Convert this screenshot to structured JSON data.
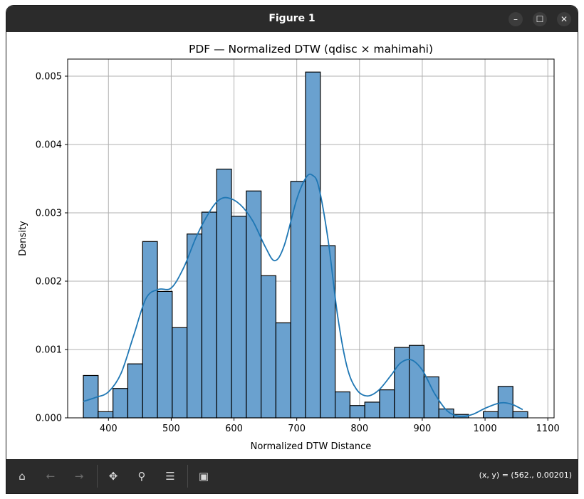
{
  "window": {
    "title": "Figure 1",
    "controls": {
      "minimize": "–",
      "maximize": "☐",
      "close": "✕"
    }
  },
  "toolbar": {
    "items": [
      {
        "name": "home-button",
        "icon": "home-icon",
        "glyph": "⌂",
        "enabled": true
      },
      {
        "name": "back-button",
        "icon": "arrow-left-icon",
        "glyph": "←",
        "enabled": false
      },
      {
        "name": "forward-button",
        "icon": "arrow-right-icon",
        "glyph": "→",
        "enabled": false
      },
      {
        "name": "pan-button",
        "icon": "move-icon",
        "glyph": "✥",
        "enabled": true
      },
      {
        "name": "zoom-button",
        "icon": "magnifier-icon",
        "glyph": "⚲",
        "enabled": true
      },
      {
        "name": "configure-subplots-button",
        "icon": "sliders-icon",
        "glyph": "☰",
        "enabled": true
      },
      {
        "name": "save-button",
        "icon": "floppy-icon",
        "glyph": "▣",
        "enabled": true
      }
    ],
    "coords": "(x, y) = (562., 0.00201)"
  },
  "chart_data": {
    "type": "histogram",
    "title": "PDF — Normalized DTW (qdisc × mahimahi)",
    "xlabel": "Normalized DTW Distance",
    "ylabel": "Density",
    "xlim": [
      335,
      1110
    ],
    "ylim": [
      0,
      0.00525
    ],
    "xticks": [
      400,
      500,
      600,
      700,
      800,
      900,
      1000,
      1100
    ],
    "yticks": [
      0.0,
      0.001,
      0.002,
      0.003,
      0.004,
      0.005
    ],
    "ytick_labels": [
      "0.000",
      "0.001",
      "0.002",
      "0.003",
      "0.004",
      "0.005"
    ],
    "grid": true,
    "bin_edges": [
      360,
      383.6,
      407.2,
      430.8,
      454.4,
      478.0,
      501.6,
      525.2,
      548.8,
      572.4,
      596.0,
      619.6,
      643.2,
      666.8,
      690.4,
      714.0,
      737.6,
      761.2,
      784.8,
      808.4,
      832.0,
      855.6,
      879.2,
      902.8,
      926.4,
      950.0,
      973.6,
      997.2,
      1020.8,
      1044.4,
      1068.0
    ],
    "densities": [
      0.00062,
      9e-05,
      0.00043,
      0.00079,
      0.00258,
      0.00185,
      0.00132,
      0.00269,
      0.00301,
      0.00364,
      0.00295,
      0.00332,
      0.00208,
      0.00139,
      0.00346,
      0.00506,
      0.00252,
      0.00038,
      0.00018,
      0.00023,
      0.00041,
      0.00103,
      0.00106,
      0.0006,
      0.00013,
      5e-05,
      0.0,
      9e-05,
      0.00046,
      9e-05
    ],
    "kde": {
      "x": [
        360,
        380,
        400,
        420,
        440,
        460,
        480,
        500,
        520,
        540,
        560,
        575,
        590,
        610,
        630,
        650,
        665,
        680,
        700,
        715,
        725,
        735,
        750,
        765,
        780,
        795,
        812,
        830,
        850,
        865,
        882,
        900,
        920,
        940,
        960,
        980,
        1000,
        1020,
        1032,
        1045,
        1060
      ],
      "y": [
        0.00024,
        0.0003,
        0.00038,
        0.00065,
        0.0012,
        0.00175,
        0.00188,
        0.0019,
        0.0022,
        0.00265,
        0.003,
        0.00318,
        0.00322,
        0.00312,
        0.00288,
        0.0025,
        0.0023,
        0.00252,
        0.0032,
        0.00352,
        0.00355,
        0.00338,
        0.0026,
        0.0015,
        0.00075,
        0.00042,
        0.00032,
        0.0004,
        0.00062,
        0.0008,
        0.00085,
        0.0007,
        0.00035,
        0.0001,
        2e-05,
        5e-05,
        0.00014,
        0.00021,
        0.00022,
        0.00019,
        0.00012
      ]
    },
    "colors": {
      "bar_fill": "#6aa1cf",
      "bar_edge": "#000000",
      "kde_line": "#1f77b4",
      "grid": "#b0b0b0"
    }
  }
}
